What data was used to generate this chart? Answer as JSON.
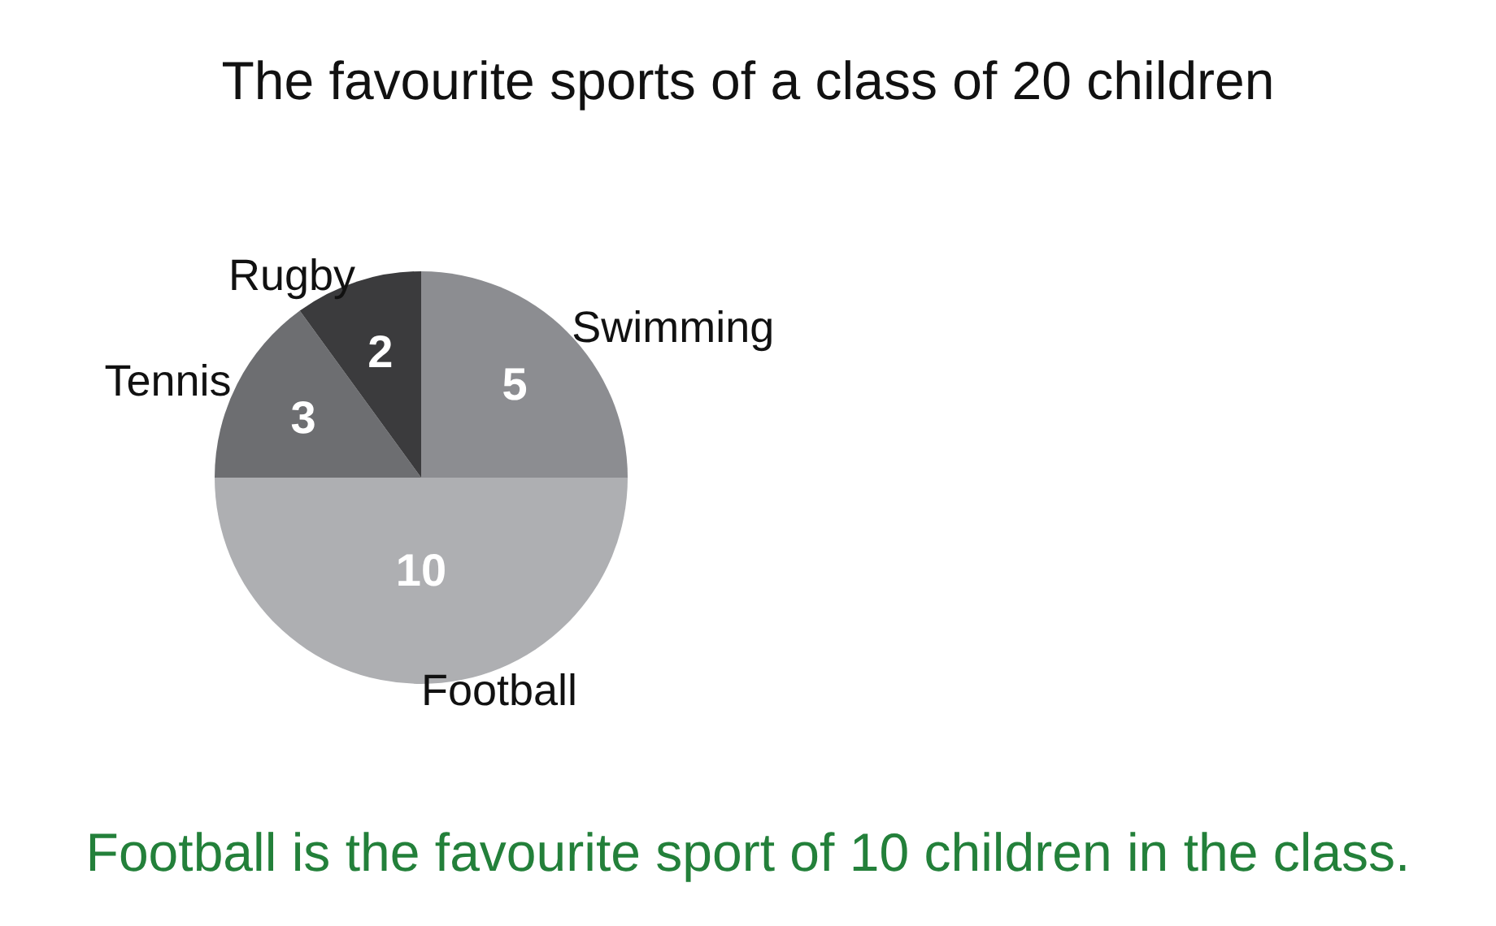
{
  "chart_data": {
    "type": "pie",
    "title": "The favourite sports of a class of 20 children",
    "categories": [
      "Swimming",
      "Football",
      "Tennis",
      "Rugby"
    ],
    "values": [
      5,
      10,
      3,
      2
    ],
    "colors": [
      "#8c8d91",
      "#aeafb2",
      "#6d6e71",
      "#3b3b3d"
    ],
    "data_labels": true,
    "annotations": [
      "Football is the favourite sport of 10 children in the class."
    ]
  }
}
